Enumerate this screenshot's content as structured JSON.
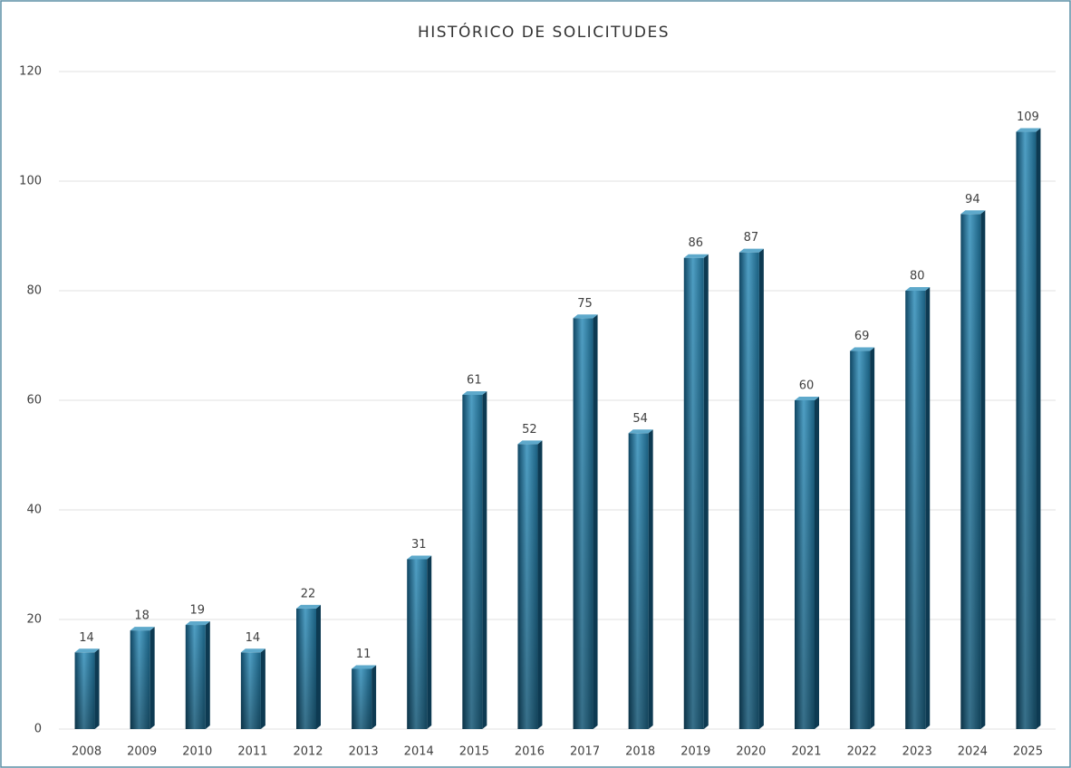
{
  "chart_data": {
    "type": "bar",
    "title": "HISTÓRICO DE SOLICITUDES",
    "categories": [
      "2008",
      "2009",
      "2010",
      "2011",
      "2012",
      "2013",
      "2014",
      "2015",
      "2016",
      "2017",
      "2018",
      "2019",
      "2020",
      "2021",
      "2022",
      "2023",
      "2024",
      "2025"
    ],
    "values": [
      14,
      18,
      19,
      14,
      22,
      11,
      31,
      61,
      52,
      75,
      54,
      86,
      87,
      60,
      69,
      80,
      94,
      109
    ],
    "color": "#1f6a8e",
    "ylim": [
      0,
      120
    ],
    "yticks": [
      0,
      20,
      40,
      60,
      80,
      100,
      120
    ],
    "grid": true
  }
}
